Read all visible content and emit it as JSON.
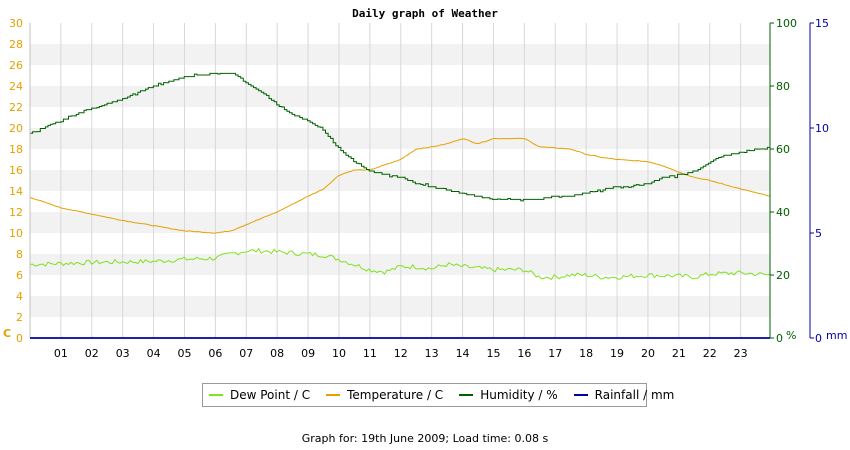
{
  "chart_data": {
    "type": "line",
    "title": "Daily graph of Weather",
    "x_ticks": [
      "01",
      "02",
      "03",
      "04",
      "05",
      "06",
      "07",
      "08",
      "09",
      "10",
      "11",
      "12",
      "13",
      "14",
      "15",
      "16",
      "17",
      "18",
      "19",
      "20",
      "21",
      "22",
      "23"
    ],
    "xlim": [
      0,
      23.95
    ],
    "axes": {
      "left": {
        "unit": "C",
        "ylim": [
          0,
          30
        ],
        "ticks": [
          0,
          2,
          4,
          6,
          8,
          10,
          12,
          14,
          16,
          18,
          20,
          22,
          24,
          26,
          28,
          30
        ],
        "color": "#e6a000"
      },
      "right1": {
        "unit": "%",
        "ylim": [
          0,
          100
        ],
        "ticks": [
          0,
          20,
          40,
          60,
          80,
          100
        ],
        "color": "#006000"
      },
      "right2": {
        "unit": "mm",
        "ylim": [
          0,
          15
        ],
        "ticks": [
          0,
          5,
          10,
          15
        ],
        "color": "#0000a0"
      }
    },
    "grid": true,
    "legend_position": "bottom",
    "series": [
      {
        "name": "Dew Point / C",
        "axis": "left",
        "color": "#80e020",
        "style": "noisy",
        "points": [
          [
            0,
            7.0
          ],
          [
            2,
            7.2
          ],
          [
            4,
            7.3
          ],
          [
            5,
            7.5
          ],
          [
            6,
            7.6
          ],
          [
            6.5,
            8.0
          ],
          [
            7,
            8.3
          ],
          [
            7.5,
            8.3
          ],
          [
            8,
            8.2
          ],
          [
            9,
            8.0
          ],
          [
            9.5,
            7.9
          ],
          [
            10,
            7.5
          ],
          [
            10.5,
            7.0
          ],
          [
            11,
            6.5
          ],
          [
            11.5,
            6.3
          ],
          [
            12,
            6.8
          ],
          [
            12.5,
            6.8
          ],
          [
            13,
            6.6
          ],
          [
            13.5,
            7.0
          ],
          [
            14,
            6.8
          ],
          [
            15,
            6.5
          ],
          [
            16,
            6.5
          ],
          [
            16.5,
            5.8
          ],
          [
            17,
            5.8
          ],
          [
            17.5,
            6.0
          ],
          [
            18,
            6.0
          ],
          [
            18.5,
            5.8
          ],
          [
            19,
            5.8
          ],
          [
            20,
            6.0
          ],
          [
            21,
            5.9
          ],
          [
            21.5,
            5.8
          ],
          [
            22,
            6.1
          ],
          [
            23,
            6.2
          ],
          [
            23.95,
            6.0
          ]
        ]
      },
      {
        "name": "Temperature / C",
        "axis": "left",
        "color": "#e6a000",
        "style": "smooth",
        "points": [
          [
            0,
            13.4
          ],
          [
            1,
            12.4
          ],
          [
            2,
            11.8
          ],
          [
            3,
            11.2
          ],
          [
            4,
            10.7
          ],
          [
            5,
            10.2
          ],
          [
            6,
            10.0
          ],
          [
            6.5,
            10.2
          ],
          [
            7,
            10.8
          ],
          [
            8,
            12.0
          ],
          [
            9,
            13.5
          ],
          [
            9.5,
            14.2
          ],
          [
            10,
            15.5
          ],
          [
            10.5,
            16.0
          ],
          [
            11,
            16.0
          ],
          [
            12,
            17.0
          ],
          [
            12.5,
            18.0
          ],
          [
            13,
            18.2
          ],
          [
            13.5,
            18.5
          ],
          [
            14,
            19.0
          ],
          [
            14.5,
            18.5
          ],
          [
            15,
            19.0
          ],
          [
            16,
            19.0
          ],
          [
            16.5,
            18.2
          ],
          [
            17,
            18.1
          ],
          [
            17.5,
            18.0
          ],
          [
            18,
            17.5
          ],
          [
            18.5,
            17.2
          ],
          [
            19,
            17.0
          ],
          [
            20,
            16.8
          ],
          [
            20.5,
            16.4
          ],
          [
            21,
            15.8
          ],
          [
            21.5,
            15.3
          ],
          [
            22,
            15.0
          ],
          [
            22.5,
            14.6
          ],
          [
            23,
            14.2
          ],
          [
            23.95,
            13.5
          ]
        ]
      },
      {
        "name": "Humidity / %",
        "axis": "right1",
        "color": "#006000",
        "style": "stepped",
        "points": [
          [
            0,
            65
          ],
          [
            1,
            69
          ],
          [
            2,
            73
          ],
          [
            3,
            76
          ],
          [
            4,
            80
          ],
          [
            5,
            83
          ],
          [
            6,
            84
          ],
          [
            6.6,
            84
          ],
          [
            7,
            81
          ],
          [
            7.5,
            78
          ],
          [
            8,
            74
          ],
          [
            8.5,
            71
          ],
          [
            9,
            69
          ],
          [
            9.5,
            66
          ],
          [
            10,
            60
          ],
          [
            10.5,
            56
          ],
          [
            11,
            53
          ],
          [
            11.5,
            52
          ],
          [
            12,
            51
          ],
          [
            12.5,
            49
          ],
          [
            13,
            48
          ],
          [
            13.5,
            47
          ],
          [
            14,
            46
          ],
          [
            14.5,
            45
          ],
          [
            15,
            44
          ],
          [
            15.5,
            44
          ],
          [
            16,
            44
          ],
          [
            16.5,
            44
          ],
          [
            17,
            45
          ],
          [
            17.5,
            45
          ],
          [
            18,
            46
          ],
          [
            18.5,
            47
          ],
          [
            19,
            48
          ],
          [
            19.5,
            48
          ],
          [
            20,
            49
          ],
          [
            20.5,
            51
          ],
          [
            21,
            52
          ],
          [
            21.5,
            53
          ],
          [
            22,
            56
          ],
          [
            22.5,
            58
          ],
          [
            23,
            59
          ],
          [
            23.5,
            60
          ],
          [
            23.95,
            60.5
          ]
        ]
      },
      {
        "name": "Rainfall / mm",
        "axis": "right2",
        "color": "#0000a0",
        "style": "line",
        "points": [
          [
            0,
            0
          ],
          [
            23.95,
            0
          ]
        ]
      }
    ]
  },
  "footer": "Graph for: 19th June 2009; Load time: 0.08 s"
}
